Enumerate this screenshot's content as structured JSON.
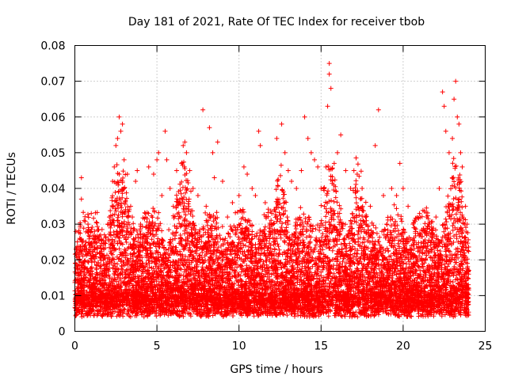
{
  "chart_data": {
    "type": "scatter",
    "title": "Day 181 of 2021, Rate Of TEC Index for receiver tbob",
    "xlabel": "GPS time / hours",
    "ylabel": "ROTI / TECUs",
    "xlim": [
      0,
      25
    ],
    "ylim": [
      0,
      0.08
    ],
    "xticks": [
      0,
      5,
      10,
      15,
      20,
      25
    ],
    "xtick_labels": [
      "0",
      "5",
      "10",
      "15",
      "20",
      "25"
    ],
    "yticks": [
      0,
      0.01,
      0.02,
      0.03,
      0.04,
      0.05,
      0.06,
      0.07,
      0.08
    ],
    "ytick_labels": [
      "0",
      "0.01",
      "0.02",
      "0.03",
      "0.04",
      "0.05",
      "0.06",
      "0.07",
      "0.08"
    ],
    "grid": true,
    "marker": "plus",
    "color": "#ff0000",
    "series": [
      {
        "points": [
          [
            0.1,
            0.008
          ],
          [
            0.2,
            0.012
          ],
          [
            0.3,
            0.02
          ],
          [
            0.4,
            0.043
          ],
          [
            0.4,
            0.037
          ],
          [
            0.5,
            0.025
          ],
          [
            0.6,
            0.018
          ],
          [
            0.8,
            0.03
          ],
          [
            1.0,
            0.033
          ],
          [
            1.2,
            0.028
          ],
          [
            1.5,
            0.022
          ],
          [
            1.8,
            0.027
          ],
          [
            2.0,
            0.03
          ],
          [
            2.1,
            0.032
          ],
          [
            2.3,
            0.042
          ],
          [
            2.4,
            0.046
          ],
          [
            2.5,
            0.052
          ],
          [
            2.6,
            0.054
          ],
          [
            2.7,
            0.06
          ],
          [
            2.8,
            0.056
          ],
          [
            2.9,
            0.058
          ],
          [
            3.0,
            0.048
          ],
          [
            3.2,
            0.044
          ],
          [
            3.4,
            0.035
          ],
          [
            3.5,
            0.032
          ],
          [
            3.7,
            0.042
          ],
          [
            3.8,
            0.045
          ],
          [
            4.0,
            0.03
          ],
          [
            4.3,
            0.033
          ],
          [
            4.5,
            0.046
          ],
          [
            4.8,
            0.044
          ],
          [
            5.0,
            0.048
          ],
          [
            5.1,
            0.05
          ],
          [
            5.3,
            0.038
          ],
          [
            5.5,
            0.056
          ],
          [
            5.6,
            0.048
          ],
          [
            5.8,
            0.04
          ],
          [
            6.0,
            0.035
          ],
          [
            6.2,
            0.045
          ],
          [
            6.5,
            0.047
          ],
          [
            6.6,
            0.052
          ],
          [
            6.7,
            0.053
          ],
          [
            6.8,
            0.05
          ],
          [
            7.0,
            0.045
          ],
          [
            7.2,
            0.04
          ],
          [
            7.5,
            0.038
          ],
          [
            7.8,
            0.062
          ],
          [
            8.0,
            0.035
          ],
          [
            8.2,
            0.057
          ],
          [
            8.4,
            0.05
          ],
          [
            8.5,
            0.043
          ],
          [
            8.7,
            0.053
          ],
          [
            9.0,
            0.042
          ],
          [
            9.3,
            0.032
          ],
          [
            9.6,
            0.036
          ],
          [
            10.0,
            0.038
          ],
          [
            10.3,
            0.046
          ],
          [
            10.5,
            0.044
          ],
          [
            10.8,
            0.04
          ],
          [
            11.0,
            0.038
          ],
          [
            11.2,
            0.056
          ],
          [
            11.3,
            0.052
          ],
          [
            11.6,
            0.036
          ],
          [
            12.0,
            0.033
          ],
          [
            12.3,
            0.054
          ],
          [
            12.6,
            0.058
          ],
          [
            12.8,
            0.05
          ],
          [
            13.0,
            0.045
          ],
          [
            13.2,
            0.042
          ],
          [
            13.5,
            0.04
          ],
          [
            13.8,
            0.045
          ],
          [
            14.0,
            0.06
          ],
          [
            14.2,
            0.054
          ],
          [
            14.4,
            0.05
          ],
          [
            14.6,
            0.048
          ],
          [
            14.8,
            0.046
          ],
          [
            15.0,
            0.04
          ],
          [
            15.2,
            0.035
          ],
          [
            15.3,
            0.046
          ],
          [
            15.4,
            0.063
          ],
          [
            15.5,
            0.075
          ],
          [
            15.5,
            0.072
          ],
          [
            15.6,
            0.068
          ],
          [
            15.8,
            0.047
          ],
          [
            16.0,
            0.05
          ],
          [
            16.2,
            0.055
          ],
          [
            16.5,
            0.045
          ],
          [
            16.8,
            0.04
          ],
          [
            17.0,
            0.045
          ],
          [
            17.2,
            0.044
          ],
          [
            17.5,
            0.04
          ],
          [
            18.0,
            0.035
          ],
          [
            18.3,
            0.052
          ],
          [
            18.5,
            0.062
          ],
          [
            18.8,
            0.038
          ],
          [
            19.0,
            0.03
          ],
          [
            19.3,
            0.04
          ],
          [
            19.6,
            0.038
          ],
          [
            19.8,
            0.047
          ],
          [
            20.0,
            0.04
          ],
          [
            20.3,
            0.035
          ],
          [
            20.6,
            0.03
          ],
          [
            21.0,
            0.033
          ],
          [
            21.3,
            0.028
          ],
          [
            21.6,
            0.03
          ],
          [
            22.0,
            0.032
          ],
          [
            22.2,
            0.04
          ],
          [
            22.4,
            0.067
          ],
          [
            22.5,
            0.063
          ],
          [
            22.6,
            0.056
          ],
          [
            22.8,
            0.05
          ],
          [
            23.0,
            0.054
          ],
          [
            23.1,
            0.065
          ],
          [
            23.2,
            0.07
          ],
          [
            23.3,
            0.06
          ],
          [
            23.4,
            0.058
          ],
          [
            23.5,
            0.05
          ],
          [
            23.6,
            0.046
          ],
          [
            23.8,
            0.035
          ],
          [
            23.9,
            0.03
          ]
        ]
      }
    ]
  }
}
